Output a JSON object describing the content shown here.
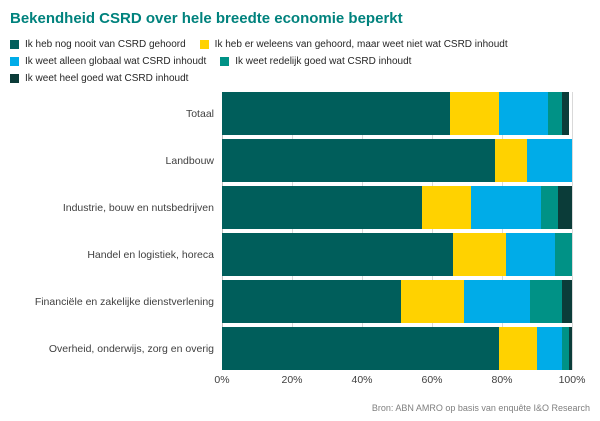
{
  "title": "Bekendheid CSRD over hele breedte economie beperkt",
  "source": "Bron: ABN AMRO op basis van enquête I&O Research",
  "colors": {
    "title_accent": "#00827D",
    "axis_text": "#3F3F3F",
    "legend_text": "#262626",
    "gridline": "#D9D9D9",
    "source_text": "#7F7F7F",
    "background": "#FFFFFF"
  },
  "chart_data": {
    "type": "bar",
    "orientation": "horizontal",
    "stacked": true,
    "title": "Bekendheid CSRD over hele breedte economie beperkt",
    "xlabel": "",
    "ylabel": "",
    "xlim": [
      0,
      100
    ],
    "x_ticks": [
      "0%",
      "20%",
      "40%",
      "60%",
      "80%",
      "100%"
    ],
    "grid": "vertical",
    "legend_position": "top",
    "categories": [
      "Totaal",
      "Landbouw",
      "Industrie, bouw en nutsbedrijven",
      "Handel en logistiek, horeca",
      "Financiële en zakelijke dienstverlening",
      "Overheid, onderwijs, zorg en overig"
    ],
    "series": [
      {
        "name": "Ik heb nog nooit van CSRD gehoord",
        "color": "#005E5B",
        "values": [
          65,
          78,
          57,
          66,
          51,
          79
        ]
      },
      {
        "name": "Ik heb er weleens van gehoord, maar weet niet wat CSRD inhoudt",
        "color": "#FFD200",
        "values": [
          14,
          9,
          14,
          15,
          18,
          11
        ]
      },
      {
        "name": "Ik weet alleen globaal wat CSRD inhoudt",
        "color": "#00ACE8",
        "values": [
          14,
          13,
          20,
          14,
          19,
          7
        ]
      },
      {
        "name": "Ik weet redelijk goed wat CSRD inhoudt",
        "color": "#009286",
        "values": [
          4,
          0,
          5,
          5,
          9,
          2
        ]
      },
      {
        "name": "Ik weet heel goed wat CSRD inhoudt",
        "color": "#0B3C39",
        "values": [
          2,
          0,
          4,
          0,
          3,
          1
        ]
      }
    ]
  }
}
